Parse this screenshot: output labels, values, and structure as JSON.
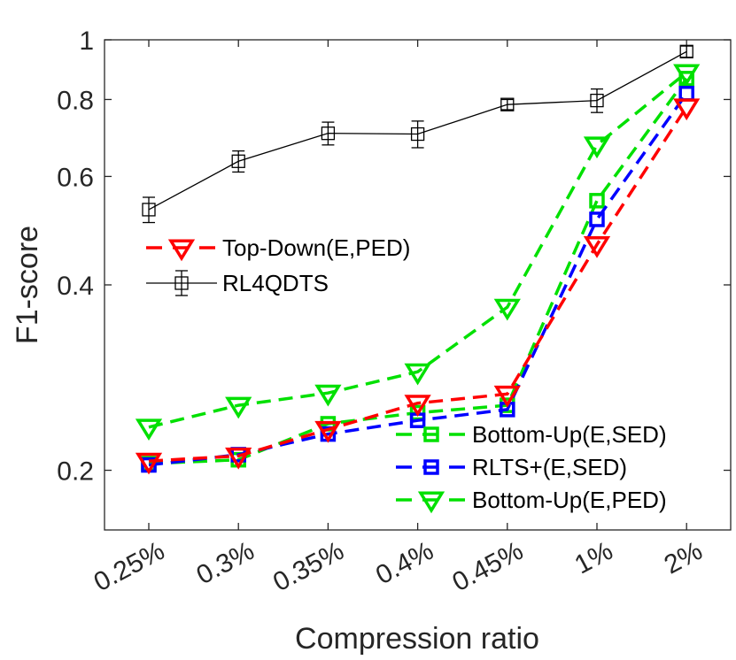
{
  "chart_data": {
    "type": "line",
    "y_scale": "log",
    "xlabel": "Compression ratio",
    "ylabel": "F1-score",
    "categories": [
      "0.25%",
      "0.3%",
      "0.35%",
      "0.4%",
      "0.45%",
      "1%",
      "2%"
    ],
    "ylim": [
      0.16,
      1.0
    ],
    "yticks": [
      0.2,
      0.4,
      0.6,
      0.8,
      1.0
    ],
    "ytick_labels": [
      "0.2",
      "0.4",
      "0.6",
      "0.8",
      "1"
    ],
    "series": [
      {
        "name": "RL4QDTS",
        "color": "#000000",
        "line": "solid",
        "marker": "square",
        "values": [
          0.53,
          0.635,
          0.705,
          0.703,
          0.785,
          0.797,
          0.957
        ],
        "err": [
          0.025,
          0.025,
          0.03,
          0.035,
          0.015,
          0.035,
          0.02
        ]
      },
      {
        "name": "Top-Down(E,PED)",
        "color": "#ff0000",
        "line": "dashed",
        "marker": "triangle-down",
        "values": [
          0.207,
          0.211,
          0.233,
          0.257,
          0.266,
          0.465,
          0.778
        ]
      },
      {
        "name": "Bottom-Up(E,SED)",
        "color": "#00e000",
        "line": "dashed",
        "marker": "square",
        "values": [
          0.205,
          0.208,
          0.238,
          0.248,
          0.255,
          0.548,
          0.865
        ]
      },
      {
        "name": "RLTS+(E,SED)",
        "color": "#0000ff",
        "line": "dashed",
        "marker": "square",
        "values": [
          0.204,
          0.212,
          0.229,
          0.241,
          0.251,
          0.511,
          0.818
        ]
      },
      {
        "name": "Bottom-Up(E,PED)",
        "color": "#00e000",
        "line": "dashed",
        "marker": "triangle-down",
        "values": [
          0.235,
          0.255,
          0.267,
          0.289,
          0.368,
          0.675,
          0.885
        ]
      }
    ],
    "legends": [
      {
        "position": "middle-left",
        "entries": [
          "Top-Down(E,PED)",
          "RL4QDTS"
        ]
      },
      {
        "position": "bottom-right",
        "entries": [
          "Bottom-Up(E,SED)",
          "RLTS+(E,SED)",
          "Bottom-Up(E,PED)"
        ]
      }
    ]
  }
}
